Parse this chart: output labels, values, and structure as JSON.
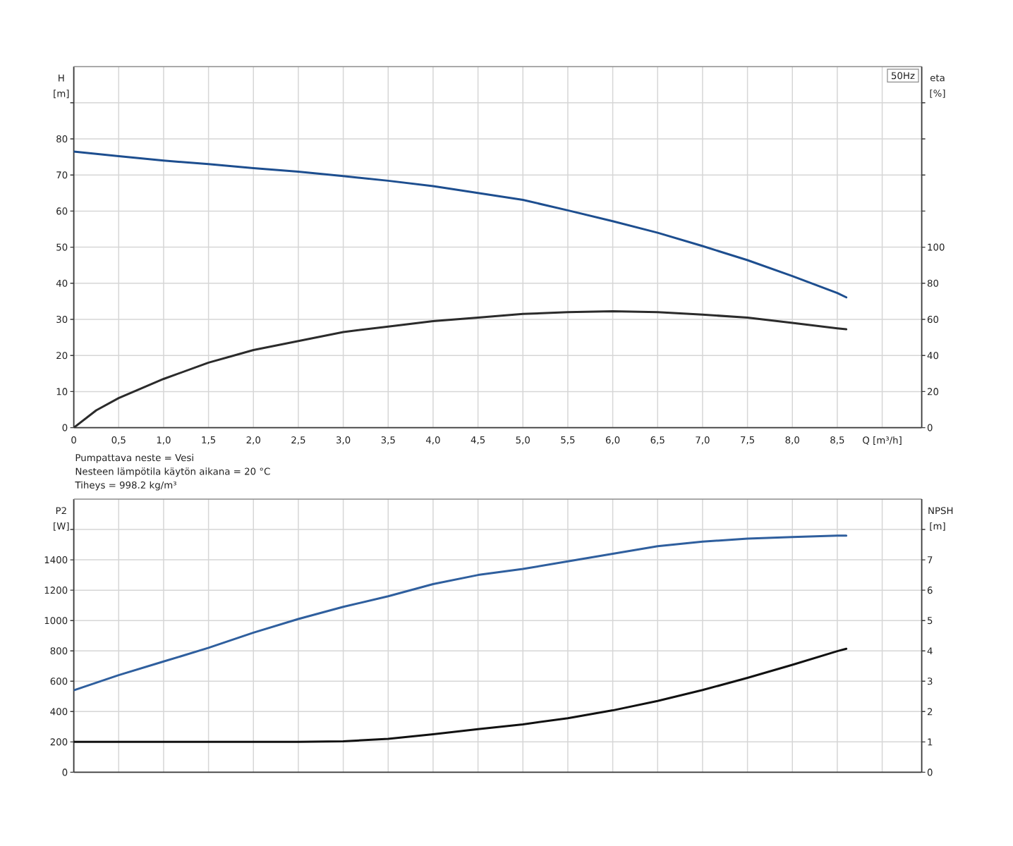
{
  "chart_data": [
    {
      "type": "line",
      "title": "50Hz",
      "xlabel": "Q [m³/h]",
      "ylabel": "H [m]",
      "y2label": "eta [%]",
      "annotations": [
        "Pumpattava neste = Vesi",
        "Nesteen lämpötila käytön aikana = 20 °C",
        "Tiheys = 998.2 kg/m³"
      ],
      "xlim": [
        0,
        9.44
      ],
      "xticks": [
        0,
        {
          "value": 0.5,
          "label": "0,5"
        },
        {
          "value": 1,
          "label": "1,0"
        },
        {
          "value": 1.5,
          "label": "1,5"
        },
        {
          "value": 2,
          "label": "2,0"
        },
        {
          "value": 2.5,
          "label": "2,5"
        },
        {
          "value": 3,
          "label": "3,0"
        },
        {
          "value": 3.5,
          "label": "3,5"
        },
        {
          "value": 4,
          "label": "4,0"
        },
        {
          "value": 4.5,
          "label": "4,5"
        },
        {
          "value": 5,
          "label": "5,0"
        },
        {
          "value": 5.5,
          "label": "5,5"
        },
        {
          "value": 6,
          "label": "6,0"
        },
        {
          "value": 6.5,
          "label": "6,5"
        },
        {
          "value": 7,
          "label": "7,0"
        },
        {
          "value": 7.5,
          "label": "7,5"
        },
        {
          "value": 8,
          "label": "8,0"
        },
        {
          "value": 8.5,
          "label": "8,5"
        },
        {
          "value": 9,
          "label": null
        }
      ],
      "ylim": [
        0,
        100
      ],
      "yticks": [
        0,
        10,
        20,
        30,
        40,
        50,
        60,
        70,
        80,
        {
          "value": 90,
          "label": null
        }
      ],
      "y2lim": [
        0,
        200
      ],
      "y2ticks": [
        0,
        20,
        40,
        60,
        80,
        100,
        {
          "value": 120,
          "label": null
        },
        {
          "value": 140,
          "label": null
        },
        {
          "value": 160,
          "label": null
        },
        {
          "value": 180,
          "label": null
        }
      ],
      "grid": true,
      "series": [
        {
          "color": "#1d4e8f",
          "x": [
            0,
            0.5,
            1,
            1.5,
            2,
            2.5,
            3,
            3.5,
            4,
            4.5,
            5,
            5.5,
            6,
            6.5,
            7,
            7.5,
            8,
            8.5,
            8.6
          ],
          "values": [
            76.5,
            75.2,
            74.0,
            73.0,
            71.9,
            70.9,
            69.7,
            68.4,
            66.9,
            65.0,
            63.1,
            60.2,
            57.2,
            54.0,
            50.3,
            46.4,
            42.0,
            37.3,
            36.1
          ]
        },
        {
          "color": "#2b2b2b",
          "axis": "y2",
          "x": [
            0,
            0.25,
            0.5,
            1,
            1.5,
            2,
            2.5,
            3,
            3.5,
            4,
            4.5,
            5,
            5.5,
            6,
            6.5,
            7,
            7.5,
            8,
            8.5,
            8.6
          ],
          "values": [
            0,
            9.6,
            16.4,
            27,
            36,
            43,
            48,
            53,
            56,
            59,
            61,
            63,
            64,
            64.5,
            64,
            62.6,
            61,
            58,
            55,
            54.5
          ]
        }
      ]
    },
    {
      "type": "line",
      "ylabel": "P2 [W]",
      "y2label": "NPSH [m]",
      "xlim": [
        0,
        9.44
      ],
      "xticks": [
        0,
        0.5,
        1,
        1.5,
        2,
        2.5,
        3,
        3.5,
        4,
        4.5,
        5,
        5.5,
        6,
        6.5,
        7,
        7.5,
        8,
        8.5,
        9
      ],
      "tick_labels": "y",
      "ylim": [
        0,
        1800
      ],
      "yticks": [
        0,
        200,
        400,
        600,
        800,
        1000,
        1200,
        1400,
        {
          "value": 1600,
          "label": null
        }
      ],
      "y2lim": [
        0,
        9
      ],
      "y2ticks": [
        0,
        1,
        2,
        3,
        4,
        5,
        6,
        7,
        {
          "value": 8,
          "label": null
        }
      ],
      "grid": true,
      "series": [
        {
          "color": "#2f5f9e",
          "x": [
            0,
            0.5,
            1,
            1.5,
            2,
            2.5,
            3,
            3.5,
            4,
            4.5,
            5,
            5.5,
            6,
            6.5,
            7,
            7.5,
            8,
            8.5,
            8.6
          ],
          "values": [
            540,
            640,
            730,
            820,
            920,
            1010,
            1090,
            1160,
            1240,
            1300,
            1340,
            1390,
            1440,
            1490,
            1520,
            1540,
            1550,
            1560,
            1560
          ]
        },
        {
          "color": "#111111",
          "axis": "y2",
          "x": [
            0,
            0.5,
            1,
            1.5,
            2,
            2.5,
            3,
            3.5,
            4,
            4.5,
            5,
            5.5,
            6,
            6.5,
            7,
            7.5,
            8,
            8.5,
            8.6
          ],
          "values": [
            1.0,
            1.0,
            1.0,
            1.0,
            1.0,
            1.0,
            1.02,
            1.1,
            1.25,
            1.42,
            1.58,
            1.78,
            2.04,
            2.35,
            2.71,
            3.11,
            3.54,
            3.99,
            4.07
          ]
        }
      ]
    }
  ]
}
